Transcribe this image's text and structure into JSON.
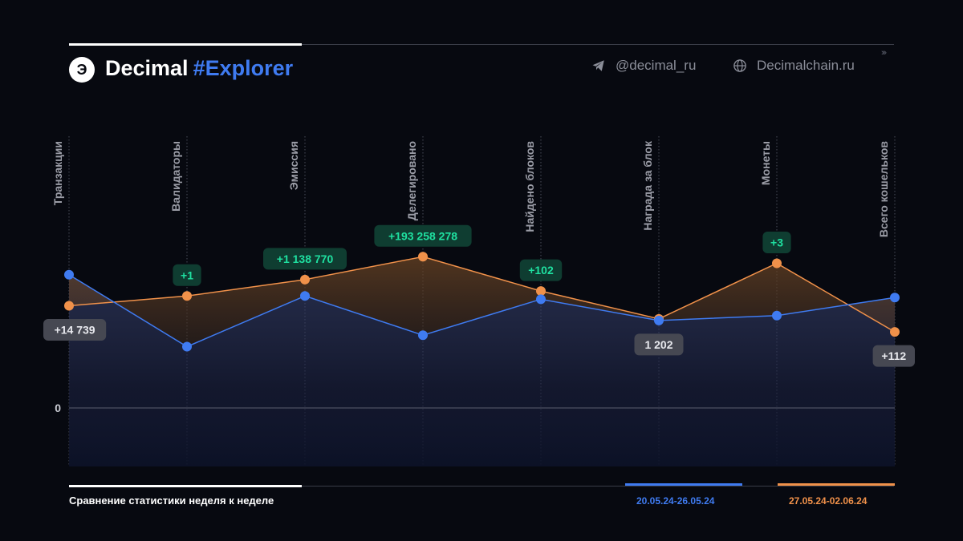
{
  "header": {
    "brand_name": "Decimal",
    "brand_tag": "#Explorer",
    "telegram": "@decimal_ru",
    "website": "Decimalchain.ru",
    "arrows": "›››"
  },
  "footer": {
    "caption": "Сравнение статистики неделя к неделе",
    "legend_week1": "20.05.24-26.05.24",
    "legend_week2": "27.05.24-02.06.24"
  },
  "colors": {
    "week1": "#3f7bf1",
    "week2": "#f0914a",
    "positive_label": "#1fe0a0",
    "neutral_label": "#e8e9ee"
  },
  "chart_data": {
    "type": "line",
    "categories": [
      "Транзакции",
      "Валидаторы",
      "Эмиссия",
      "Делегировано",
      "Найдено блоков",
      "Награда за блок",
      "Монеты",
      "Всего кошельков"
    ],
    "zero_label": "0",
    "series": [
      {
        "name": "20.05.24-26.05.24",
        "values": [
          0.815,
          0.375,
          0.685,
          0.445,
          0.665,
          0.535,
          0.565,
          0.675
        ]
      },
      {
        "name": "27.05.24-02.06.24",
        "values": [
          0.625,
          0.685,
          0.785,
          0.925,
          0.715,
          0.545,
          0.885,
          0.465
        ]
      }
    ],
    "value_scale": "relative",
    "ylim": [
      -0.38,
      1.0
    ],
    "labels": [
      {
        "text": "+14 739",
        "kind": "neutral"
      },
      {
        "text": "+1",
        "kind": "positive"
      },
      {
        "text": "+1 138 770",
        "kind": "positive"
      },
      {
        "text": "+193 258 278",
        "kind": "positive"
      },
      {
        "text": "+102",
        "kind": "positive"
      },
      {
        "text": "1 202",
        "kind": "neutral"
      },
      {
        "text": "+3",
        "kind": "positive"
      },
      {
        "text": "+112",
        "kind": "neutral"
      }
    ]
  }
}
